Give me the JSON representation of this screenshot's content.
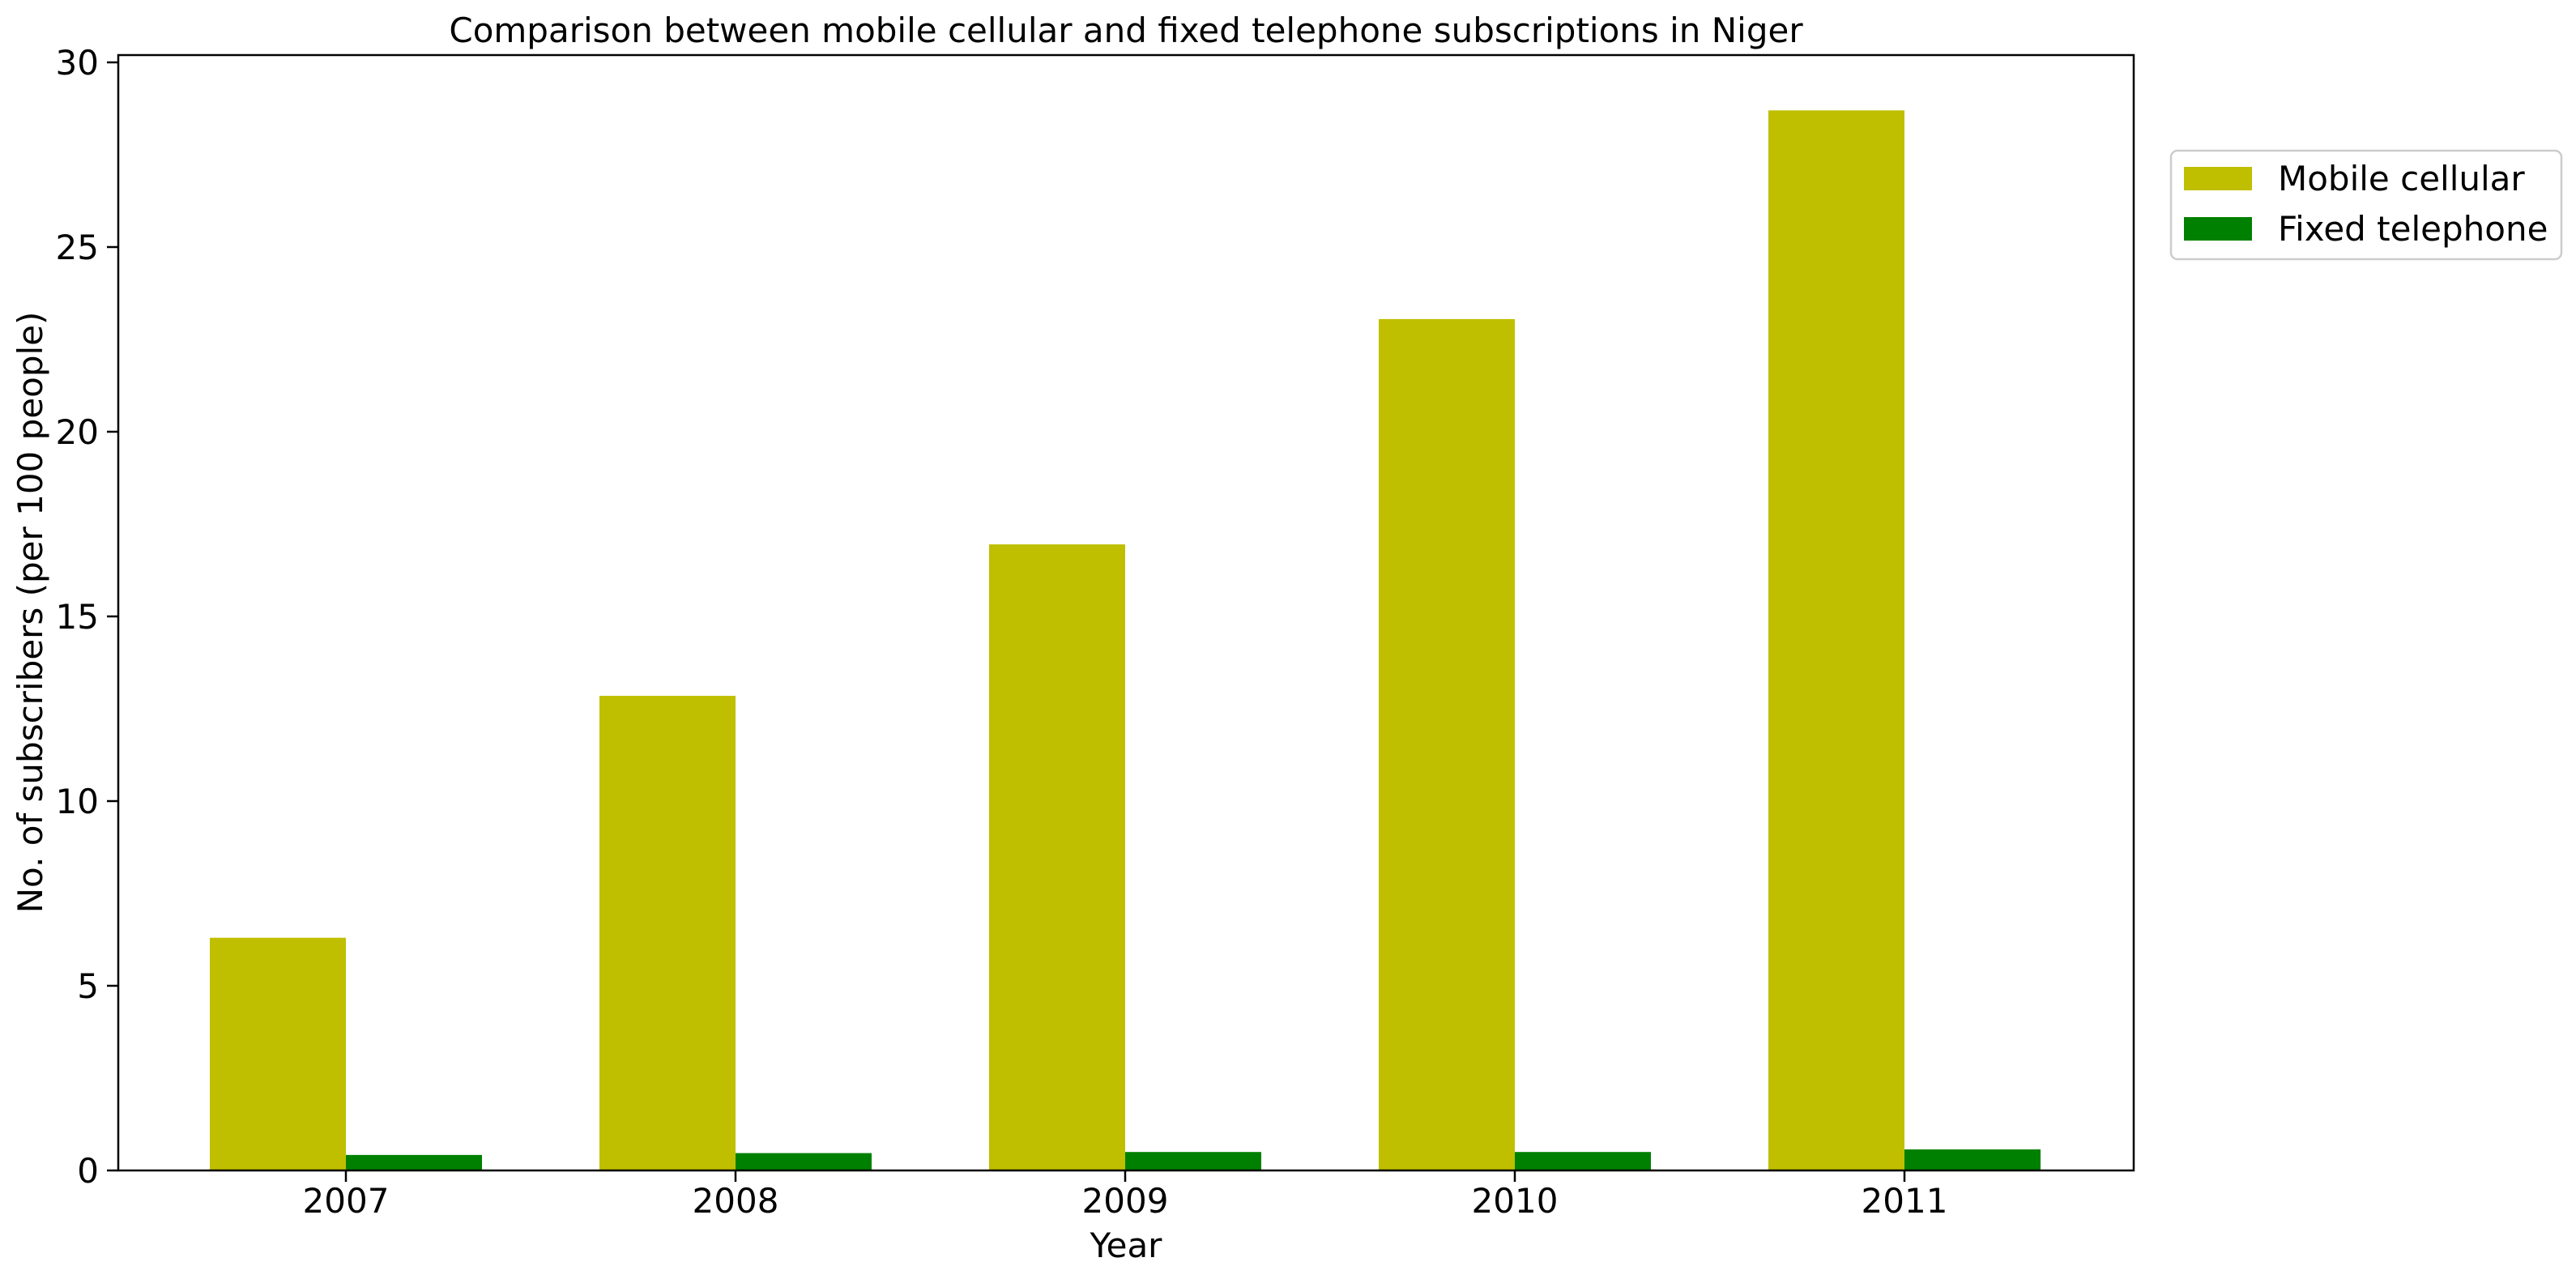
{
  "chart_data": {
    "type": "bar",
    "title": "Comparison between mobile cellular and fixed telephone subscriptions in Niger",
    "xlabel": "Year",
    "ylabel": "No. of subscribers (per 100 people)",
    "categories": [
      "2007",
      "2008",
      "2009",
      "2010",
      "2011"
    ],
    "series": [
      {
        "name": "Mobile cellular",
        "color": "#bfbf00",
        "values": [
          6.3,
          12.85,
          16.95,
          23.05,
          28.7
        ]
      },
      {
        "name": "Fixed telephone",
        "color": "#008000",
        "values": [
          0.42,
          0.47,
          0.5,
          0.5,
          0.57
        ]
      }
    ],
    "ylim": [
      0,
      30
    ],
    "yticks": [
      "0",
      "5",
      "10",
      "15",
      "20",
      "25",
      "30"
    ],
    "grid": false,
    "legend": "upper-right-outside"
  }
}
